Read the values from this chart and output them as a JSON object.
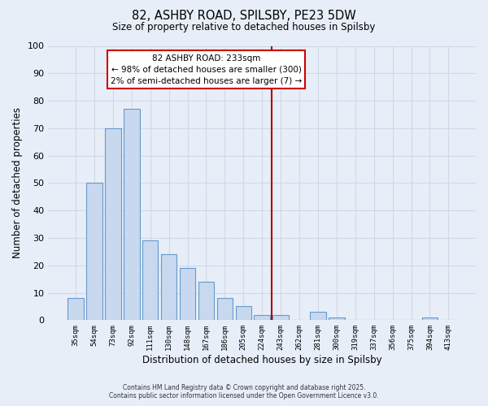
{
  "title1": "82, ASHBY ROAD, SPILSBY, PE23 5DW",
  "title2": "Size of property relative to detached houses in Spilsby",
  "xlabel": "Distribution of detached houses by size in Spilsby",
  "ylabel": "Number of detached properties",
  "bar_labels": [
    "35sqm",
    "54sqm",
    "73sqm",
    "92sqm",
    "111sqm",
    "130sqm",
    "148sqm",
    "167sqm",
    "186sqm",
    "205sqm",
    "224sqm",
    "243sqm",
    "262sqm",
    "281sqm",
    "300sqm",
    "319sqm",
    "337sqm",
    "356sqm",
    "375sqm",
    "394sqm",
    "413sqm"
  ],
  "bar_values": [
    8,
    50,
    70,
    77,
    29,
    24,
    19,
    14,
    8,
    5,
    2,
    2,
    0,
    3,
    1,
    0,
    0,
    0,
    0,
    1,
    0
  ],
  "bar_color": "#c8d8ee",
  "bar_edge_color": "#6699cc",
  "vline_x": 10.5,
  "vline_color": "#aa0000",
  "ylim": [
    0,
    100
  ],
  "yticks": [
    0,
    10,
    20,
    30,
    40,
    50,
    60,
    70,
    80,
    90,
    100
  ],
  "annotation_title": "82 ASHBY ROAD: 233sqm",
  "annotation_line1": "← 98% of detached houses are smaller (300)",
  "annotation_line2": "2% of semi-detached houses are larger (7) →",
  "annotation_box_color": "#ffffff",
  "annotation_box_edge": "#cc0000",
  "bg_color": "#e8eef8",
  "grid_color": "#d0d8e8",
  "footnote1": "Contains HM Land Registry data © Crown copyright and database right 2025.",
  "footnote2": "Contains public sector information licensed under the Open Government Licence v3.0."
}
